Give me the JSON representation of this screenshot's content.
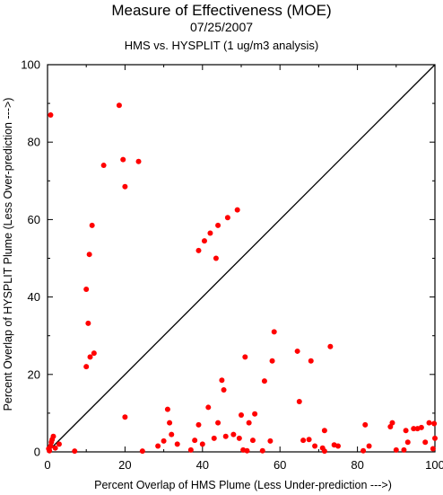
{
  "chart_data": {
    "type": "scatter",
    "title": "Measure of Effectiveness (MOE)",
    "subtitle": "07/25/2007",
    "subtitle2": "HMS vs. HYSPLIT  (1 ug/m3 analysis)",
    "xlabel": "Percent Overlap of HMS Plume (Less Under-prediction --->)",
    "ylabel": "Percent Overlap of HYSPLIT Plume (Less Over-prediction --->)",
    "xlim": [
      0,
      100
    ],
    "ylim": [
      0,
      100
    ],
    "xticks": [
      "0",
      "20",
      "40",
      "60",
      "80",
      "100"
    ],
    "yticks": [
      "0",
      "20",
      "40",
      "60",
      "80",
      "100"
    ],
    "grid": false,
    "reference_line": "y = x",
    "point_color": "#ff0000",
    "points": [
      [
        0.8,
        87
      ],
      [
        0.5,
        0.3
      ],
      [
        0.8,
        1.5
      ],
      [
        1.0,
        2.5
      ],
      [
        1.2,
        3.2
      ],
      [
        1.5,
        4.0
      ],
      [
        0.3,
        0.8
      ],
      [
        2.0,
        1.0
      ],
      [
        3.0,
        2.0
      ],
      [
        7.0,
        0.2
      ],
      [
        10.0,
        42
      ],
      [
        10.5,
        33.2
      ],
      [
        10.8,
        51
      ],
      [
        11.5,
        58.5
      ],
      [
        10.0,
        22
      ],
      [
        11.0,
        24.5
      ],
      [
        12.0,
        25.5
      ],
      [
        14.5,
        74
      ],
      [
        18.5,
        89.5
      ],
      [
        19.5,
        75.5
      ],
      [
        20.0,
        68.5
      ],
      [
        23.5,
        75
      ],
      [
        20.0,
        9.0
      ],
      [
        24.5,
        0.2
      ],
      [
        28.5,
        1.5
      ],
      [
        30.0,
        2.8
      ],
      [
        31.0,
        11.0
      ],
      [
        31.5,
        7.5
      ],
      [
        32.0,
        4.5
      ],
      [
        33.5,
        2.0
      ],
      [
        37.0,
        0.5
      ],
      [
        38.0,
        3.0
      ],
      [
        39.0,
        52
      ],
      [
        39.0,
        7.0
      ],
      [
        40.5,
        54.5
      ],
      [
        40.0,
        2.0
      ],
      [
        41.5,
        11.5
      ],
      [
        42.0,
        56.5
      ],
      [
        43.0,
        3.5
      ],
      [
        43.5,
        50
      ],
      [
        44.0,
        58.5
      ],
      [
        44.0,
        7.5
      ],
      [
        45.0,
        18.5
      ],
      [
        45.5,
        16.0
      ],
      [
        46.5,
        60.5
      ],
      [
        46.0,
        4.0
      ],
      [
        48.0,
        4.5
      ],
      [
        49.0,
        62.5
      ],
      [
        49.5,
        3.5
      ],
      [
        50.0,
        9.5
      ],
      [
        50.5,
        0.5
      ],
      [
        51.0,
        24.5
      ],
      [
        51.5,
        0.3
      ],
      [
        52.0,
        7.5
      ],
      [
        53.5,
        9.8
      ],
      [
        53.0,
        3.0
      ],
      [
        56.0,
        18.3
      ],
      [
        57.5,
        2.8
      ],
      [
        58.0,
        23.5
      ],
      [
        58.5,
        31.0
      ],
      [
        64.5,
        26.0
      ],
      [
        65.0,
        13.0
      ],
      [
        66.0,
        3.0
      ],
      [
        67.5,
        3.2
      ],
      [
        68.0,
        23.5
      ],
      [
        69.0,
        1.5
      ],
      [
        71.0,
        1.0
      ],
      [
        71.5,
        5.5
      ],
      [
        73.0,
        27.2
      ],
      [
        74.0,
        1.8
      ],
      [
        75.0,
        1.5
      ],
      [
        81.5,
        0.3
      ],
      [
        82.0,
        7.0
      ],
      [
        83.0,
        1.5
      ],
      [
        88.5,
        6.5
      ],
      [
        89.0,
        7.5
      ],
      [
        90.0,
        0.5
      ],
      [
        92.5,
        5.5
      ],
      [
        93.0,
        2.5
      ],
      [
        94.5,
        6.0
      ],
      [
        95.5,
        6.0
      ],
      [
        96.5,
        6.3
      ],
      [
        97.5,
        2.5
      ],
      [
        98.5,
        7.5
      ],
      [
        99.5,
        0.8
      ],
      [
        100.0,
        3.5
      ],
      [
        99.8,
        7.3
      ],
      [
        92.0,
        0.5
      ],
      [
        71.5,
        0.2
      ],
      [
        55.5,
        0.3
      ]
    ]
  }
}
